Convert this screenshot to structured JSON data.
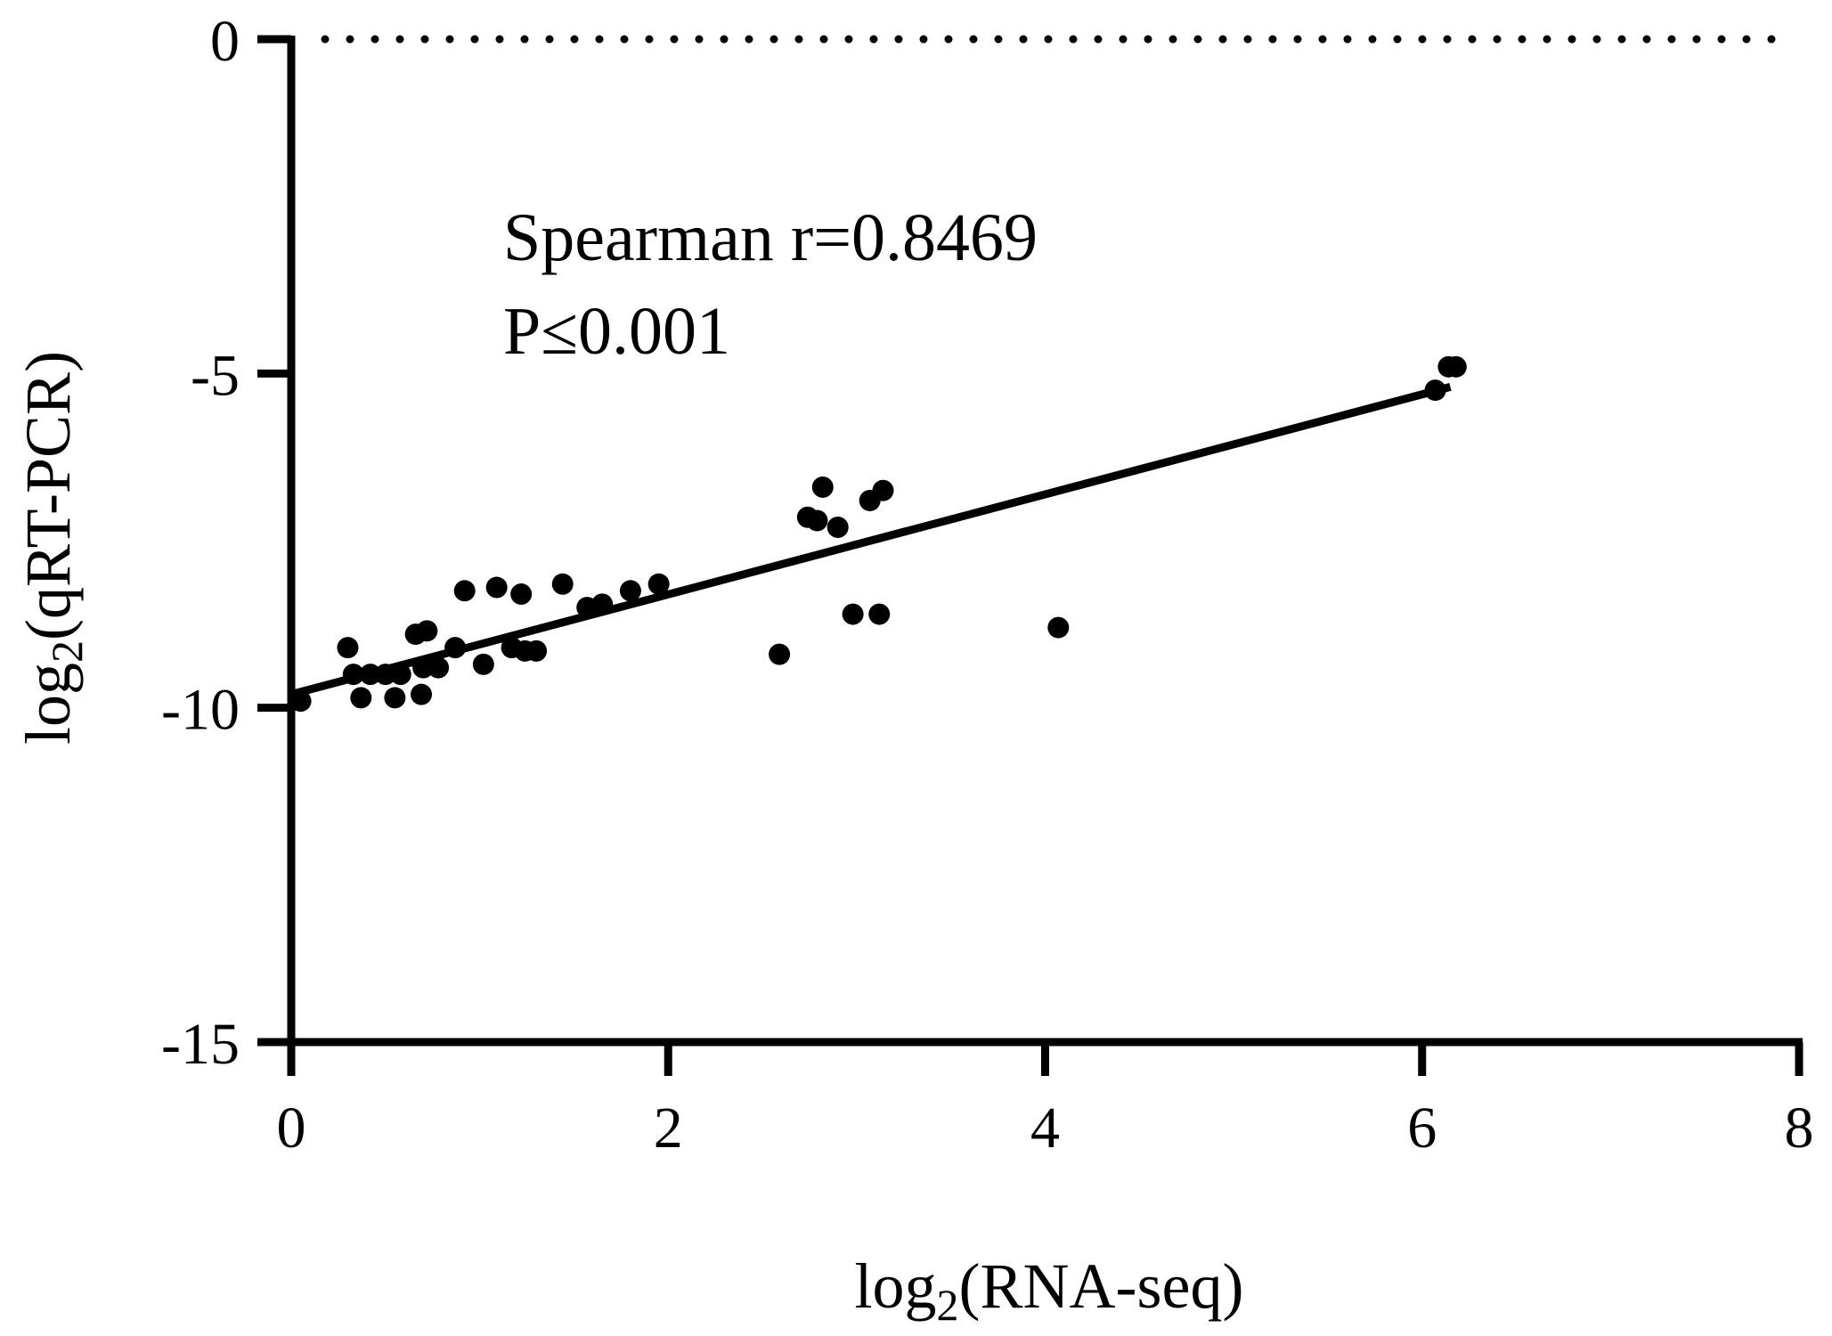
{
  "chart_data": {
    "type": "scatter",
    "xlabel_parts": [
      "log",
      "2",
      "(RNA-seq)"
    ],
    "ylabel_parts": [
      "log",
      "2",
      "(qRT-PCR)"
    ],
    "xlim": [
      0,
      8
    ],
    "ylim": [
      -15,
      0
    ],
    "x_ticks": [
      0,
      2,
      4,
      6,
      8
    ],
    "y_ticks": [
      0,
      -5,
      -10,
      -15
    ],
    "x_tick_labels": [
      "0",
      "2",
      "4",
      "6",
      "8"
    ],
    "y_tick_labels": [
      "0",
      "-5",
      "-10",
      "-15"
    ],
    "grid": false,
    "reference_line": {
      "y": 0,
      "style": "dotted"
    },
    "annotations": [
      "Spearman r=0.8469",
      "P≤0.001"
    ],
    "regression_line": {
      "x": [
        0.0,
        6.15
      ],
      "y": [
        -9.8,
        -5.2
      ]
    },
    "points": [
      {
        "x": 0.05,
        "y": -9.9
      },
      {
        "x": 0.3,
        "y": -9.1
      },
      {
        "x": 0.33,
        "y": -9.5
      },
      {
        "x": 0.37,
        "y": -9.85
      },
      {
        "x": 0.42,
        "y": -9.5
      },
      {
        "x": 0.5,
        "y": -9.5
      },
      {
        "x": 0.55,
        "y": -9.85
      },
      {
        "x": 0.58,
        "y": -9.5
      },
      {
        "x": 0.66,
        "y": -8.9
      },
      {
        "x": 0.69,
        "y": -9.8
      },
      {
        "x": 0.7,
        "y": -9.4
      },
      {
        "x": 0.72,
        "y": -8.85
      },
      {
        "x": 0.78,
        "y": -9.4
      },
      {
        "x": 0.87,
        "y": -9.1
      },
      {
        "x": 0.92,
        "y": -8.25
      },
      {
        "x": 1.02,
        "y": -9.35
      },
      {
        "x": 1.09,
        "y": -8.2
      },
      {
        "x": 1.17,
        "y": -9.1
      },
      {
        "x": 1.22,
        "y": -8.3
      },
      {
        "x": 1.24,
        "y": -9.15
      },
      {
        "x": 1.3,
        "y": -9.15
      },
      {
        "x": 1.44,
        "y": -8.15
      },
      {
        "x": 1.57,
        "y": -8.5
      },
      {
        "x": 1.65,
        "y": -8.45
      },
      {
        "x": 1.8,
        "y": -8.25
      },
      {
        "x": 1.95,
        "y": -8.15
      },
      {
        "x": 2.59,
        "y": -9.2
      },
      {
        "x": 2.74,
        "y": -7.15
      },
      {
        "x": 2.79,
        "y": -7.2
      },
      {
        "x": 2.82,
        "y": -6.7
      },
      {
        "x": 2.9,
        "y": -7.3
      },
      {
        "x": 2.98,
        "y": -8.6
      },
      {
        "x": 3.07,
        "y": -6.9
      },
      {
        "x": 3.12,
        "y": -8.6
      },
      {
        "x": 3.14,
        "y": -6.75
      },
      {
        "x": 4.07,
        "y": -8.8
      },
      {
        "x": 6.07,
        "y": -5.25
      },
      {
        "x": 6.14,
        "y": -4.9
      },
      {
        "x": 6.18,
        "y": -4.9
      }
    ]
  }
}
